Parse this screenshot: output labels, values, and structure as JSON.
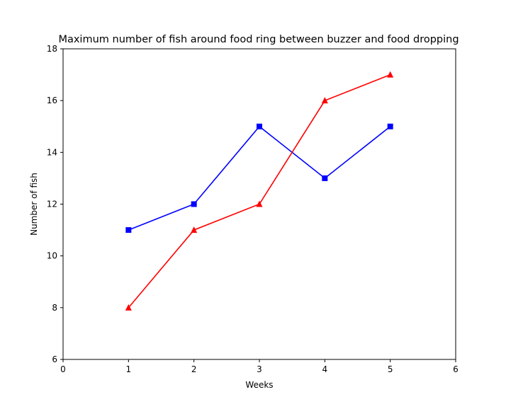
{
  "chart_data": {
    "type": "line",
    "title": "Maximum number of fish around food ring between buzzer and food dropping",
    "xlabel": "Weeks",
    "ylabel": "Number of fish",
    "xlim": [
      0,
      6
    ],
    "ylim": [
      6,
      18
    ],
    "xticks": [
      0,
      1,
      2,
      3,
      4,
      5,
      6
    ],
    "yticks": [
      6,
      8,
      10,
      12,
      14,
      16,
      18
    ],
    "grid": false,
    "x": [
      1,
      2,
      3,
      4,
      5
    ],
    "series": [
      {
        "values": [
          11,
          12,
          15,
          13,
          15
        ],
        "color": "#0000ff",
        "marker": "square"
      },
      {
        "values": [
          8,
          11,
          12,
          16,
          17
        ],
        "color": "#ff0000",
        "marker": "triangle"
      }
    ]
  }
}
